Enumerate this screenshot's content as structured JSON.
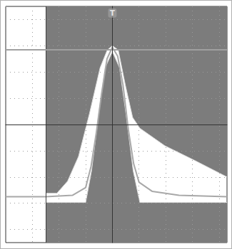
{
  "chart_data": {
    "type": "line",
    "xlim": [
      -4,
      4.3
    ],
    "ylim": [
      -4.5,
      4.5
    ],
    "xticks": [
      -4,
      -3,
      -2,
      -1,
      0,
      1,
      2,
      3,
      4
    ],
    "yticks": [
      -4,
      -3,
      -2,
      -1,
      0,
      1,
      2,
      3,
      4
    ],
    "grid": true,
    "tick_labels": false,
    "mask_upper": {
      "color": "#7c7c7c",
      "x": [
        -2.49,
        -2.08,
        -1.68,
        -1.27,
        -0.86,
        -0.46,
        -0.19,
        0,
        0.22,
        0.49,
        0.76,
        1.03,
        1.97,
        3.05,
        4.3
      ],
      "values": [
        -2.62,
        -2.62,
        -2.16,
        -1.22,
        0.41,
        2.16,
        2.84,
        3.0,
        2.84,
        1.49,
        0.27,
        -0.14,
        -0.81,
        -1.35,
        -2.0
      ]
    },
    "mask_lower": {
      "color": "#7c7c7c",
      "x": [
        -2.49,
        -1.0,
        -0.78,
        -0.51,
        -0.27,
        0,
        0.27,
        0.51,
        0.78,
        1.03,
        4.3
      ],
      "values": [
        -2.97,
        -2.97,
        -1.76,
        0.41,
        2.16,
        2.78,
        2.16,
        0.41,
        -1.76,
        -2.97,
        -2.97
      ]
    },
    "waveform": {
      "color": "#a8a8a8",
      "x": [
        -4,
        -2.5,
        -1.5,
        -1.0,
        -0.8,
        -0.6,
        -0.4,
        -0.2,
        0,
        0.2,
        0.4,
        0.6,
        0.8,
        1.0,
        1.5,
        2.5,
        4.3
      ],
      "values": [
        -2.75,
        -2.75,
        -2.7,
        -2.4,
        -1.6,
        -0.3,
        1.2,
        2.5,
        2.95,
        2.6,
        1.5,
        -0.2,
        -1.5,
        -2.2,
        -2.55,
        -2.7,
        -2.75
      ]
    },
    "reference_line": {
      "value": 2.84,
      "color": "#a0a0a0"
    },
    "annotations": [
      {
        "text": "T",
        "x": 0,
        "y": 4.25
      }
    ]
  }
}
